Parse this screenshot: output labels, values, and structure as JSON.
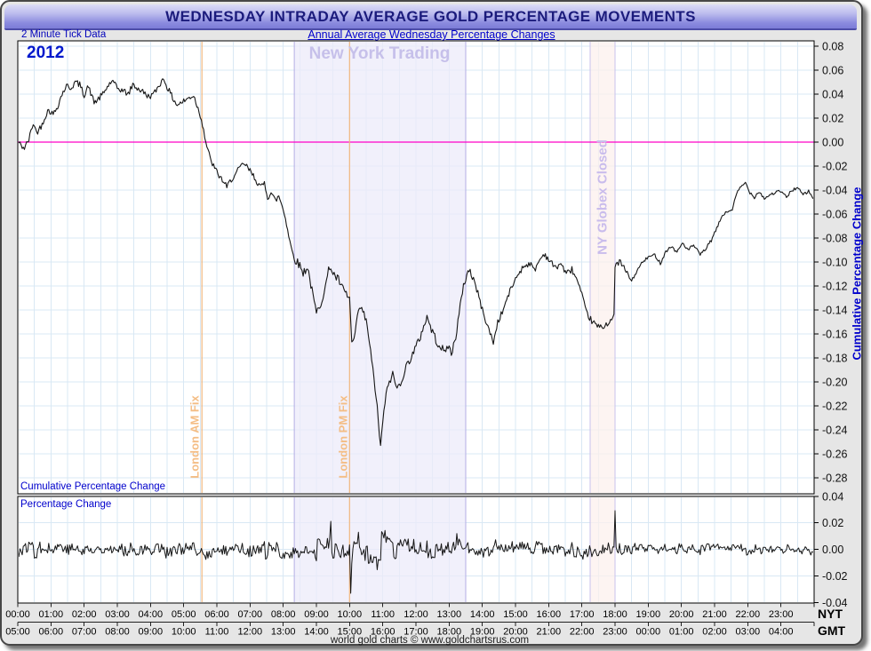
{
  "header": {
    "title": "WEDNESDAY INTRADAY AVERAGE GOLD PERCENTAGE MOVEMENTS",
    "tick_note": "2 Minute Tick Data",
    "subtitle": "Annual Average Wednesday Percentage Changes"
  },
  "annotations": {
    "year": "2012",
    "ny_trading": "New York Trading",
    "globex": "NY Globex Closed",
    "london_am": "London AM Fix",
    "london_pm": "London PM Fix",
    "main_panel_label": "Cumulative Percentage Change",
    "lower_panel_label": "Percentage Change",
    "right_axis_title": "Cumulative Percentage Change",
    "nyt": "NYT",
    "gmt": "GMT"
  },
  "footer": {
    "credit": "world gold charts © www.goldchartsrus.com"
  },
  "colors": {
    "grid": "#d9e8f4",
    "zero_line": "#ff00c8",
    "fix_line": "#f2b77e",
    "series": "#161616",
    "region_fills": [
      "#eceafa",
      "#fcf0ed"
    ],
    "region_edges": [
      "#b4aee4",
      "#c9c2ec"
    ],
    "panel_border": "#000000",
    "tick_text": "#111111"
  },
  "chart_data": {
    "type": "line",
    "title": "WEDNESDAY INTRADAY AVERAGE GOLD PERCENTAGE MOVEMENTS",
    "subtitle": "Annual Average Wednesday Percentage Changes",
    "series_note": "2 Minute Tick Data, year 2012",
    "x_axis": {
      "range_minutes": [
        0,
        1440
      ],
      "nyt_ticks": [
        "00:00",
        "01:00",
        "02:00",
        "03:00",
        "04:00",
        "05:00",
        "06:00",
        "07:00",
        "08:00",
        "09:00",
        "10:00",
        "11:00",
        "12:00",
        "13:00",
        "14:00",
        "15:00",
        "16:00",
        "17:00",
        "18:00",
        "19:00",
        "20:00",
        "21:00",
        "22:00",
        "23:00"
      ],
      "gmt_ticks": [
        "05:00",
        "06:00",
        "07:00",
        "08:00",
        "09:00",
        "10:00",
        "11:00",
        "12:00",
        "13:00",
        "14:00",
        "15:00",
        "16:00",
        "17:00",
        "18:00",
        "19:00",
        "20:00",
        "21:00",
        "22:00",
        "23:00",
        "00:00",
        "01:00",
        "02:00",
        "03:00",
        "04:00"
      ]
    },
    "panels": [
      {
        "name": "Cumulative Percentage Change",
        "ylim": [
          -0.293,
          0.084
        ],
        "yticks": [
          "0.08",
          "0.06",
          "0.04",
          "0.02",
          "0.00",
          "-0.02",
          "-0.04",
          "-0.06",
          "-0.08",
          "-0.10",
          "-0.12",
          "-0.14",
          "-0.16",
          "-0.18",
          "-0.20",
          "-0.22",
          "-0.24",
          "-0.26",
          "-0.28"
        ],
        "zero_line": 0.0,
        "points": [
          [
            "00:00",
            0.001
          ],
          [
            "00:06",
            -0.003
          ],
          [
            "00:12",
            -0.005
          ],
          [
            "00:20",
            0.002
          ],
          [
            "00:28",
            0.016
          ],
          [
            "00:34",
            0.008
          ],
          [
            "00:42",
            0.013
          ],
          [
            "00:50",
            0.022
          ],
          [
            "00:56",
            0.027
          ],
          [
            "01:04",
            0.023
          ],
          [
            "01:12",
            0.03
          ],
          [
            "01:20",
            0.04
          ],
          [
            "01:28",
            0.047
          ],
          [
            "01:36",
            0.045
          ],
          [
            "01:44",
            0.05
          ],
          [
            "01:52",
            0.048
          ],
          [
            "02:00",
            0.039
          ],
          [
            "02:06",
            0.047
          ],
          [
            "02:12",
            0.041
          ],
          [
            "02:18",
            0.033
          ],
          [
            "02:26",
            0.036
          ],
          [
            "02:34",
            0.04
          ],
          [
            "02:42",
            0.046
          ],
          [
            "02:50",
            0.051
          ],
          [
            "03:00",
            0.045
          ],
          [
            "03:10",
            0.043
          ],
          [
            "03:20",
            0.04
          ],
          [
            "03:28",
            0.048
          ],
          [
            "03:36",
            0.045
          ],
          [
            "03:46",
            0.042
          ],
          [
            "03:56",
            0.038
          ],
          [
            "04:06",
            0.04
          ],
          [
            "04:16",
            0.048
          ],
          [
            "04:24",
            0.053
          ],
          [
            "04:32",
            0.044
          ],
          [
            "04:40",
            0.037
          ],
          [
            "04:48",
            0.031
          ],
          [
            "05:00",
            0.034
          ],
          [
            "05:10",
            0.037
          ],
          [
            "05:18",
            0.039
          ],
          [
            "05:26",
            0.028
          ],
          [
            "05:33",
            0.018
          ],
          [
            "05:40",
            0.0
          ],
          [
            "05:48",
            -0.014
          ],
          [
            "05:56",
            -0.022
          ],
          [
            "06:04",
            -0.028
          ],
          [
            "06:12",
            -0.033
          ],
          [
            "06:18",
            -0.038
          ],
          [
            "06:26",
            -0.031
          ],
          [
            "06:34",
            -0.027
          ],
          [
            "06:42",
            -0.021
          ],
          [
            "06:50",
            -0.018
          ],
          [
            "06:58",
            -0.023
          ],
          [
            "07:06",
            -0.028
          ],
          [
            "07:14",
            -0.034
          ],
          [
            "07:20",
            -0.038
          ],
          [
            "07:26",
            -0.034
          ],
          [
            "07:32",
            -0.046
          ],
          [
            "07:38",
            -0.042
          ],
          [
            "07:46",
            -0.049
          ],
          [
            "07:52",
            -0.045
          ],
          [
            "07:58",
            -0.053
          ],
          [
            "08:04",
            -0.063
          ],
          [
            "08:10",
            -0.078
          ],
          [
            "08:16",
            -0.091
          ],
          [
            "08:22",
            -0.098
          ],
          [
            "08:30",
            -0.103
          ],
          [
            "08:36",
            -0.109
          ],
          [
            "08:44",
            -0.104
          ],
          [
            "08:52",
            -0.124
          ],
          [
            "09:00",
            -0.143
          ],
          [
            "09:08",
            -0.134
          ],
          [
            "09:16",
            -0.121
          ],
          [
            "09:24",
            -0.103
          ],
          [
            "09:32",
            -0.111
          ],
          [
            "09:40",
            -0.115
          ],
          [
            "09:48",
            -0.123
          ],
          [
            "09:56",
            -0.128
          ],
          [
            "10:00",
            -0.131
          ],
          [
            "10:04",
            -0.168
          ],
          [
            "10:10",
            -0.162
          ],
          [
            "10:16",
            -0.139
          ],
          [
            "10:24",
            -0.141
          ],
          [
            "10:32",
            -0.153
          ],
          [
            "10:40",
            -0.183
          ],
          [
            "10:48",
            -0.212
          ],
          [
            "10:56",
            -0.254
          ],
          [
            "11:04",
            -0.216
          ],
          [
            "11:12",
            -0.199
          ],
          [
            "11:18",
            -0.194
          ],
          [
            "11:26",
            -0.206
          ],
          [
            "11:34",
            -0.198
          ],
          [
            "11:42",
            -0.188
          ],
          [
            "11:50",
            -0.18
          ],
          [
            "11:58",
            -0.173
          ],
          [
            "12:06",
            -0.165
          ],
          [
            "12:14",
            -0.153
          ],
          [
            "12:20",
            -0.146
          ],
          [
            "12:28",
            -0.156
          ],
          [
            "12:36",
            -0.165
          ],
          [
            "12:44",
            -0.17
          ],
          [
            "12:52",
            -0.176
          ],
          [
            "12:58",
            -0.169
          ],
          [
            "13:04",
            -0.177
          ],
          [
            "13:12",
            -0.162
          ],
          [
            "13:20",
            -0.137
          ],
          [
            "13:28",
            -0.116
          ],
          [
            "13:36",
            -0.106
          ],
          [
            "13:44",
            -0.114
          ],
          [
            "13:52",
            -0.126
          ],
          [
            "14:00",
            -0.14
          ],
          [
            "14:10",
            -0.154
          ],
          [
            "14:20",
            -0.167
          ],
          [
            "14:28",
            -0.15
          ],
          [
            "14:36",
            -0.142
          ],
          [
            "14:46",
            -0.129
          ],
          [
            "14:56",
            -0.118
          ],
          [
            "15:06",
            -0.109
          ],
          [
            "15:16",
            -0.103
          ],
          [
            "15:26",
            -0.101
          ],
          [
            "15:34",
            -0.107
          ],
          [
            "15:44",
            -0.098
          ],
          [
            "15:52",
            -0.093
          ],
          [
            "16:02",
            -0.099
          ],
          [
            "16:12",
            -0.105
          ],
          [
            "16:22",
            -0.101
          ],
          [
            "16:32",
            -0.11
          ],
          [
            "16:42",
            -0.106
          ],
          [
            "16:52",
            -0.116
          ],
          [
            "17:00",
            -0.128
          ],
          [
            "17:08",
            -0.142
          ],
          [
            "17:16",
            -0.148
          ],
          [
            "17:26",
            -0.153
          ],
          [
            "17:36",
            -0.155
          ],
          [
            "17:46",
            -0.151
          ],
          [
            "17:58",
            -0.146
          ],
          [
            "18:00",
            -0.104
          ],
          [
            "18:08",
            -0.099
          ],
          [
            "18:16",
            -0.105
          ],
          [
            "18:24",
            -0.111
          ],
          [
            "18:30",
            -0.116
          ],
          [
            "18:38",
            -0.109
          ],
          [
            "18:48",
            -0.101
          ],
          [
            "19:00",
            -0.096
          ],
          [
            "19:12",
            -0.094
          ],
          [
            "19:22",
            -0.101
          ],
          [
            "19:32",
            -0.091
          ],
          [
            "19:42",
            -0.087
          ],
          [
            "19:52",
            -0.092
          ],
          [
            "20:02",
            -0.084
          ],
          [
            "20:12",
            -0.09
          ],
          [
            "20:22",
            -0.086
          ],
          [
            "20:34",
            -0.094
          ],
          [
            "20:44",
            -0.089
          ],
          [
            "20:54",
            -0.082
          ],
          [
            "21:04",
            -0.072
          ],
          [
            "21:14",
            -0.061
          ],
          [
            "21:24",
            -0.058
          ],
          [
            "21:32",
            -0.056
          ],
          [
            "21:40",
            -0.043
          ],
          [
            "21:48",
            -0.037
          ],
          [
            "21:56",
            -0.034
          ],
          [
            "22:04",
            -0.042
          ],
          [
            "22:12",
            -0.046
          ],
          [
            "22:20",
            -0.041
          ],
          [
            "22:30",
            -0.047
          ],
          [
            "22:40",
            -0.044
          ],
          [
            "22:50",
            -0.042
          ],
          [
            "23:00",
            -0.041
          ],
          [
            "23:10",
            -0.046
          ],
          [
            "23:20",
            -0.04
          ],
          [
            "23:30",
            -0.038
          ],
          [
            "23:40",
            -0.044
          ],
          [
            "23:50",
            -0.041
          ],
          [
            "23:58",
            -0.047
          ]
        ]
      },
      {
        "name": "Percentage Change",
        "ylim": [
          -0.04,
          0.04
        ],
        "yticks": [
          "0.04",
          "0.02",
          "0.00",
          "-0.02",
          "-0.04"
        ],
        "derived": "2-minute first difference of the cumulative series (noise band around 0.00)",
        "noise_band": [
          -0.008,
          0.008
        ],
        "spikes": [
          [
            "05:33",
            -0.012
          ],
          [
            "09:26",
            0.021
          ],
          [
            "10:02",
            -0.033
          ],
          [
            "18:00",
            0.029
          ]
        ]
      }
    ],
    "regions": [
      {
        "label": "New York Trading",
        "from": "08:20",
        "to": "13:30"
      },
      {
        "label": "NY Globex Closed",
        "from": "17:15",
        "to": "18:00"
      }
    ],
    "vlines": [
      {
        "label": "London AM Fix",
        "at": "05:33"
      },
      {
        "label": "London PM Fix",
        "at": "10:00"
      }
    ]
  }
}
